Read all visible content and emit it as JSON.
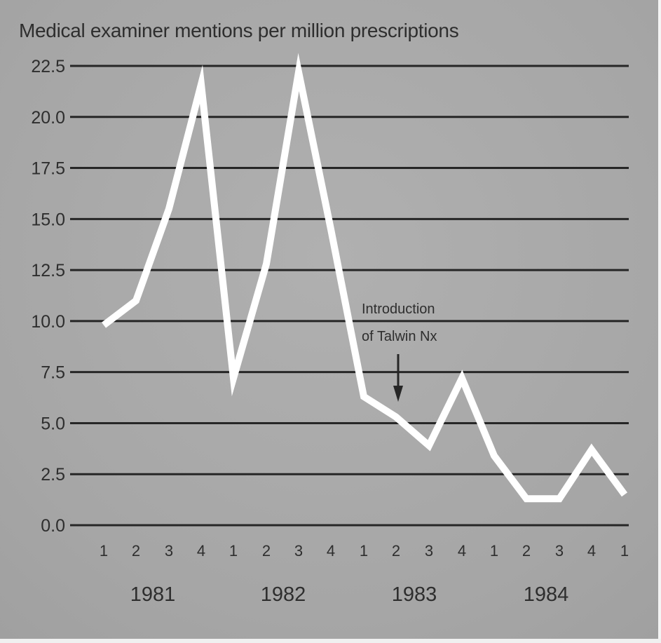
{
  "chart_data": {
    "type": "line",
    "title": "Medical examiner mentions per million prescriptions",
    "xlabel": "",
    "ylabel": "Medical examiner mentions per million prescriptions",
    "ylim": [
      0,
      22.5
    ],
    "yticks": [
      "22.5",
      "20.0",
      "17.5",
      "15.0",
      "12.5",
      "10.0",
      "7.5",
      "5.0",
      "2.5",
      "0.0"
    ],
    "grid": true,
    "categories": [
      "1981 Q1",
      "1981 Q2",
      "1981 Q3",
      "1981 Q4",
      "1982 Q1",
      "1982 Q2",
      "1982 Q3",
      "1982 Q4",
      "1983 Q1",
      "1983 Q2",
      "1983 Q3",
      "1983 Q4",
      "1984 Q1",
      "1984 Q2",
      "1984 Q3",
      "1984 Q4",
      "1985 Q1"
    ],
    "quarter_labels": [
      "1",
      "2",
      "3",
      "4",
      "1",
      "2",
      "3",
      "4",
      "1",
      "2",
      "3",
      "4",
      "1",
      "2",
      "3",
      "4",
      "1"
    ],
    "year_labels": [
      "1981",
      "1982",
      "1983",
      "1984"
    ],
    "series": [
      {
        "name": "Medical examiner mentions per million prescriptions",
        "color": "#ffffff",
        "values": [
          9.8,
          11.0,
          15.5,
          21.6,
          7.2,
          12.8,
          22.2,
          14.5,
          6.3,
          5.3,
          3.9,
          7.2,
          3.4,
          1.3,
          1.3,
          3.7,
          1.5
        ]
      }
    ],
    "annotations": [
      {
        "text_line1": "Introduction",
        "text_line2": "of Talwin Nx",
        "at": "1983 Q2",
        "marker": "down-arrow"
      }
    ]
  },
  "colors": {
    "background": "#a9a9a9",
    "gridline": "#262626",
    "line": "#ffffff",
    "text": "#2e2e2e"
  }
}
